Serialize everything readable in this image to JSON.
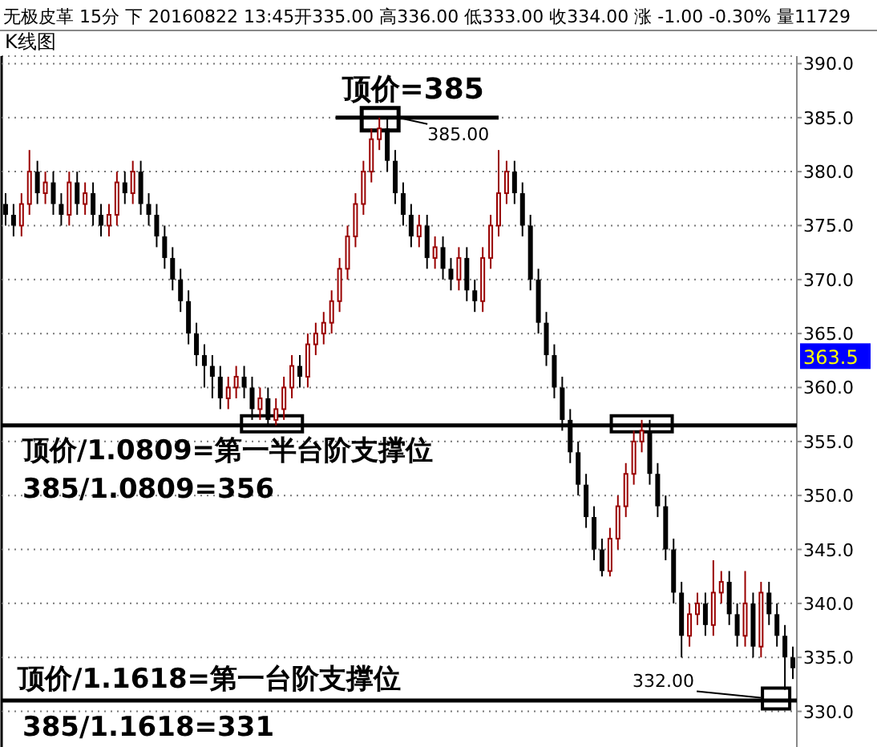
{
  "chart_data": {
    "type": "candlestick",
    "title": "无极皮革 15分 下 20160822 13:45开335.00 高336.00 低333.00 收334.00 涨 -1.00 -0.30% 量11729",
    "subtitle": "K线图",
    "categories": [
      null,
      null,
      null,
      null,
      null,
      null,
      null,
      null,
      null,
      null,
      null,
      null,
      null,
      null,
      null,
      null,
      null,
      null,
      null,
      null,
      null,
      null,
      null,
      null,
      null,
      null,
      null,
      null,
      null,
      null,
      null,
      null,
      null,
      null,
      null,
      null,
      null,
      null,
      null,
      null,
      null,
      null,
      null,
      null,
      null,
      null,
      null,
      null,
      null,
      null,
      null,
      null,
      null,
      null,
      null,
      null,
      null,
      null,
      null,
      null,
      null,
      null,
      null,
      null,
      null,
      null,
      null,
      null,
      null,
      null,
      null,
      null,
      null,
      null,
      null,
      null,
      null,
      null,
      null,
      null,
      null,
      null,
      null,
      null,
      null,
      null,
      null,
      null,
      null,
      null,
      null,
      null,
      null,
      null,
      null,
      null,
      null,
      null,
      null,
      null
    ],
    "ohlc": [
      [
        377,
        378,
        375,
        376
      ],
      [
        376,
        377,
        374,
        375
      ],
      [
        375,
        378,
        374,
        377
      ],
      [
        377,
        382,
        376,
        380
      ],
      [
        380,
        381,
        377,
        378
      ],
      [
        378,
        380,
        377,
        379
      ],
      [
        379,
        380,
        376,
        377
      ],
      [
        377,
        378,
        375,
        376
      ],
      [
        376,
        380,
        375,
        379
      ],
      [
        379,
        380,
        376,
        377
      ],
      [
        377,
        379,
        376,
        378
      ],
      [
        378,
        379,
        375,
        376
      ],
      [
        376,
        377,
        374,
        375
      ],
      [
        375,
        377,
        374,
        376
      ],
      [
        376,
        380,
        375,
        379
      ],
      [
        379,
        380,
        377,
        378
      ],
      [
        378,
        381,
        377,
        380
      ],
      [
        380,
        381,
        376,
        377
      ],
      [
        377,
        378,
        375,
        376
      ],
      [
        376,
        377,
        373,
        374
      ],
      [
        374,
        375,
        371,
        372
      ],
      [
        372,
        373,
        369,
        370
      ],
      [
        370,
        371,
        367,
        368
      ],
      [
        368,
        369,
        364,
        365
      ],
      [
        365,
        366,
        362,
        363
      ],
      [
        363,
        364,
        360,
        362
      ],
      [
        362,
        363,
        359,
        361
      ],
      [
        361,
        362,
        358,
        359
      ],
      [
        359,
        361,
        358,
        360
      ],
      [
        360,
        362,
        359,
        361
      ],
      [
        361,
        362,
        359,
        360
      ],
      [
        360,
        361,
        357,
        358
      ],
      [
        358,
        360,
        357,
        359
      ],
      [
        359,
        360,
        356.5,
        357
      ],
      [
        357,
        359,
        356.5,
        358
      ],
      [
        358,
        361,
        357,
        360
      ],
      [
        360,
        363,
        359,
        362
      ],
      [
        362,
        363,
        360,
        361
      ],
      [
        361,
        365,
        360,
        364
      ],
      [
        364,
        366,
        363,
        365
      ],
      [
        365,
        367,
        364,
        366
      ],
      [
        366,
        369,
        365,
        368
      ],
      [
        368,
        372,
        367,
        371
      ],
      [
        371,
        375,
        370,
        374
      ],
      [
        374,
        378,
        373,
        377
      ],
      [
        377,
        381,
        376,
        380
      ],
      [
        380,
        384,
        379,
        383
      ],
      [
        383,
        385,
        382,
        384
      ],
      [
        384,
        385,
        380,
        381
      ],
      [
        381,
        382,
        377,
        378
      ],
      [
        378,
        379,
        375,
        376
      ],
      [
        376,
        377,
        373,
        374
      ],
      [
        374,
        376,
        373,
        375
      ],
      [
        375,
        376,
        371,
        372
      ],
      [
        372,
        374,
        371,
        373
      ],
      [
        373,
        374,
        370,
        371
      ],
      [
        371,
        372,
        369,
        370
      ],
      [
        370,
        373,
        369,
        372
      ],
      [
        372,
        373,
        368,
        369
      ],
      [
        369,
        370,
        367,
        368
      ],
      [
        368,
        373,
        367,
        372
      ],
      [
        372,
        376,
        371,
        375
      ],
      [
        375,
        382,
        374,
        378
      ],
      [
        378,
        381,
        377,
        380
      ],
      [
        380,
        381,
        377,
        378
      ],
      [
        378,
        379,
        374,
        375
      ],
      [
        375,
        376,
        369,
        370
      ],
      [
        370,
        371,
        365,
        366
      ],
      [
        366,
        367,
        362,
        363
      ],
      [
        363,
        364,
        359,
        360
      ],
      [
        360,
        361,
        356,
        357
      ],
      [
        357,
        358,
        353,
        354
      ],
      [
        354,
        355,
        350,
        351
      ],
      [
        351,
        352,
        347,
        348
      ],
      [
        348,
        349,
        344,
        345
      ],
      [
        345,
        346,
        342.5,
        343
      ],
      [
        343,
        347,
        342.5,
        346
      ],
      [
        346,
        350,
        345,
        349
      ],
      [
        349,
        353,
        348,
        352
      ],
      [
        352,
        356,
        351,
        355
      ],
      [
        355,
        357,
        354,
        356
      ],
      [
        356,
        357,
        351,
        352
      ],
      [
        352,
        353,
        348,
        349
      ],
      [
        349,
        350,
        344,
        345
      ],
      [
        345,
        346,
        340,
        341
      ],
      [
        341,
        342,
        335,
        337
      ],
      [
        337,
        340,
        336,
        339
      ],
      [
        339,
        341,
        338,
        340
      ],
      [
        340,
        341,
        337,
        338
      ],
      [
        338,
        344,
        337,
        341
      ],
      [
        341,
        343,
        340,
        342
      ],
      [
        342,
        343,
        338,
        339
      ],
      [
        339,
        340,
        336,
        337
      ],
      [
        337,
        343,
        336,
        340
      ],
      [
        340,
        341,
        335,
        336
      ],
      [
        336,
        342,
        335,
        341
      ],
      [
        341,
        342,
        338,
        339
      ],
      [
        339,
        340,
        336,
        337
      ],
      [
        337,
        338,
        332,
        335
      ],
      [
        335,
        336,
        333,
        334
      ]
    ],
    "ylim": [
      326.7,
      390.7
    ],
    "yticks": [
      {
        "value": 330,
        "label": "330.0"
      },
      {
        "value": 335,
        "label": "335.0"
      },
      {
        "value": 340,
        "label": "340.0"
      },
      {
        "value": 345,
        "label": "345.0"
      },
      {
        "value": 350,
        "label": "350.0"
      },
      {
        "value": 355,
        "label": "355.0"
      },
      {
        "value": 360,
        "label": "360.0"
      },
      {
        "value": 365,
        "label": "365.0"
      },
      {
        "value": 370,
        "label": "370.0"
      },
      {
        "value": 375,
        "label": "375.0"
      },
      {
        "value": 380,
        "label": "380.0"
      },
      {
        "value": 385,
        "label": "385.0"
      },
      {
        "value": 390,
        "label": "390.0"
      }
    ],
    "grid": "y",
    "ref_lines": [
      {
        "axis": "y",
        "value": 385,
        "label": "顶价=385",
        "color": "#000000"
      },
      {
        "axis": "y",
        "value": 356.5,
        "color": "#000000"
      },
      {
        "axis": "y",
        "value": 331,
        "color": "#000000"
      }
    ],
    "annotations": [
      "顶价/1.0809=第一半台阶支撑位",
      "385/1.0809=356",
      "顶价/1.1618=第一台阶支撑位",
      "385/1.1618=331",
      "385.00",
      "332.00",
      "363.5"
    ]
  }
}
